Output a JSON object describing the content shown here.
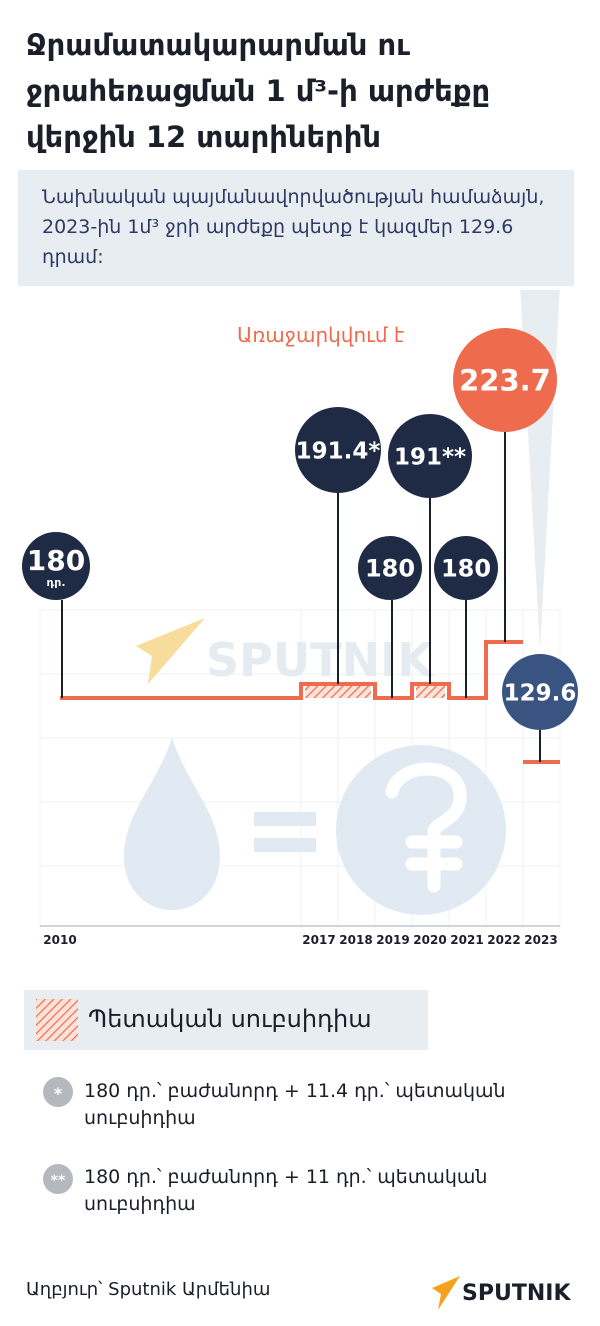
{
  "title": "Ջրամատակարարման ու ջրահեռացման 1 մ³-ի արժեքը վերջին 12 տարիներին",
  "note": "Նախնական պայմանավորվածության համաձայն, 2023-ին 1մ³ ջրի արժեքը պետք է կազմեր 129.6 դրամ:",
  "proposed_label": "Առաջարկվում է",
  "first_unit": "դր.",
  "watermark": "SPUTNIK",
  "legend": {
    "subsidy_label": "Պետական սուբսիդիա"
  },
  "footnotes": [
    {
      "mark": "*",
      "text": "180 դր.՝ բաժանորդ + 11.4 դր.՝ պետական սուբսիդիա"
    },
    {
      "mark": "**",
      "text": "180 դր.՝ բաժանորդ + 11 դր.՝ պետական սուբսիդիա"
    }
  ],
  "source": "Աղբյուր՝ Sputnik Արմենիա",
  "logo_text": "SPUTNIK",
  "colors": {
    "line": "#ee6c4d",
    "bubble_dark": "#1f2a44",
    "bubble_proposed": "#ee6c4d",
    "bubble_plan": "#3a5481",
    "watermark": "#e1eaf2"
  },
  "chart_data": {
    "type": "line",
    "step": true,
    "x": [
      "2010",
      "2017",
      "2018",
      "2019",
      "2020",
      "2021",
      "2022",
      "2023"
    ],
    "segments": [
      {
        "from": "2010",
        "to": "2017",
        "value": 180
      },
      {
        "from": "2017",
        "to": "2019",
        "value": 191.4,
        "subsidy": true
      },
      {
        "from": "2019",
        "to": "2020",
        "value": 180
      },
      {
        "from": "2020",
        "to": "2021",
        "value": 191,
        "subsidy": true
      },
      {
        "from": "2021",
        "to": "2022",
        "value": 180
      },
      {
        "from": "2022",
        "to": "2023",
        "value": 223.7,
        "proposed": true
      }
    ],
    "plan_value": {
      "year": "2023",
      "value": 129.6
    },
    "labels": [
      {
        "text": "180",
        "kind": "dark",
        "at": "2010"
      },
      {
        "text": "191.4*",
        "kind": "dark",
        "at": "2017-2018"
      },
      {
        "text": "180",
        "kind": "dark",
        "at": "2019"
      },
      {
        "text": "191**",
        "kind": "dark",
        "at": "2020"
      },
      {
        "text": "180",
        "kind": "dark",
        "at": "2021"
      },
      {
        "text": "223.7",
        "kind": "proposed",
        "at": "2022"
      },
      {
        "text": "129.6",
        "kind": "plan",
        "at": "2023"
      }
    ],
    "grid": true,
    "yrange": [
      120,
      230
    ]
  }
}
